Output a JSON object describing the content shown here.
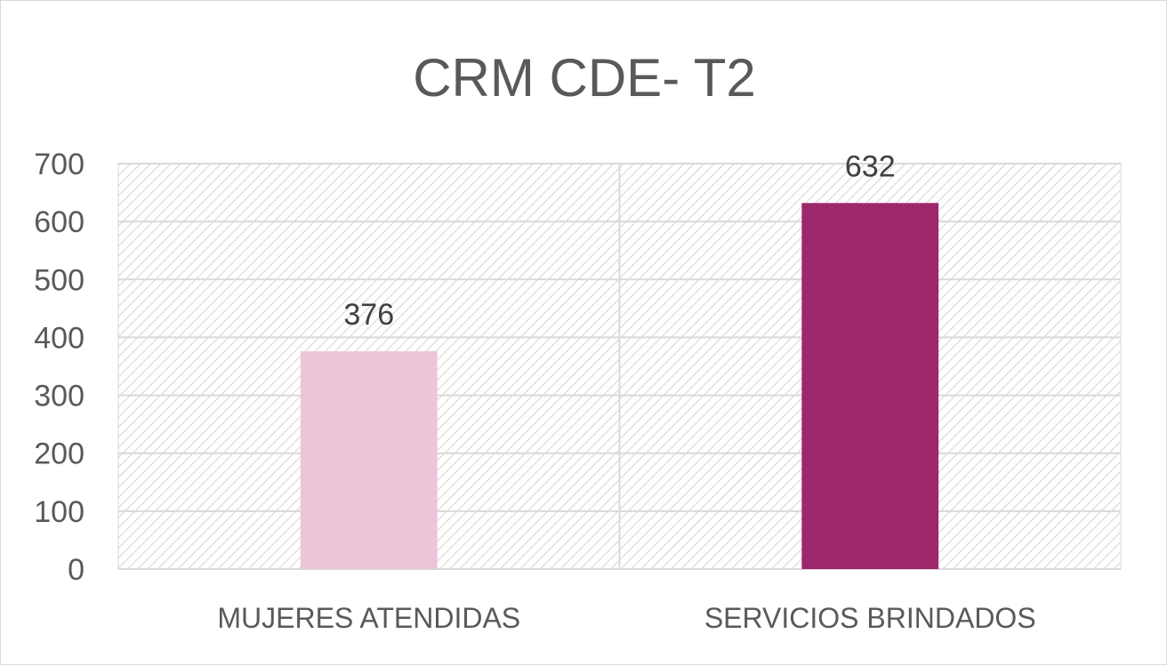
{
  "chart_data": {
    "type": "bar",
    "title": "CRM CDE- T2",
    "categories": [
      "MUJERES ATENDIDAS",
      "SERVICIOS BRINDADOS"
    ],
    "values": [
      376,
      632
    ],
    "bar_colors": [
      "#ebc6d9",
      "#9e286b"
    ],
    "ylim": [
      0,
      700
    ],
    "yticks": [
      "0",
      "100",
      "200",
      "300",
      "400",
      "500",
      "600",
      "700"
    ],
    "data_labels": [
      "376",
      "632"
    ],
    "grid": true,
    "legend": "none",
    "plot_background": "hatched-gray"
  }
}
